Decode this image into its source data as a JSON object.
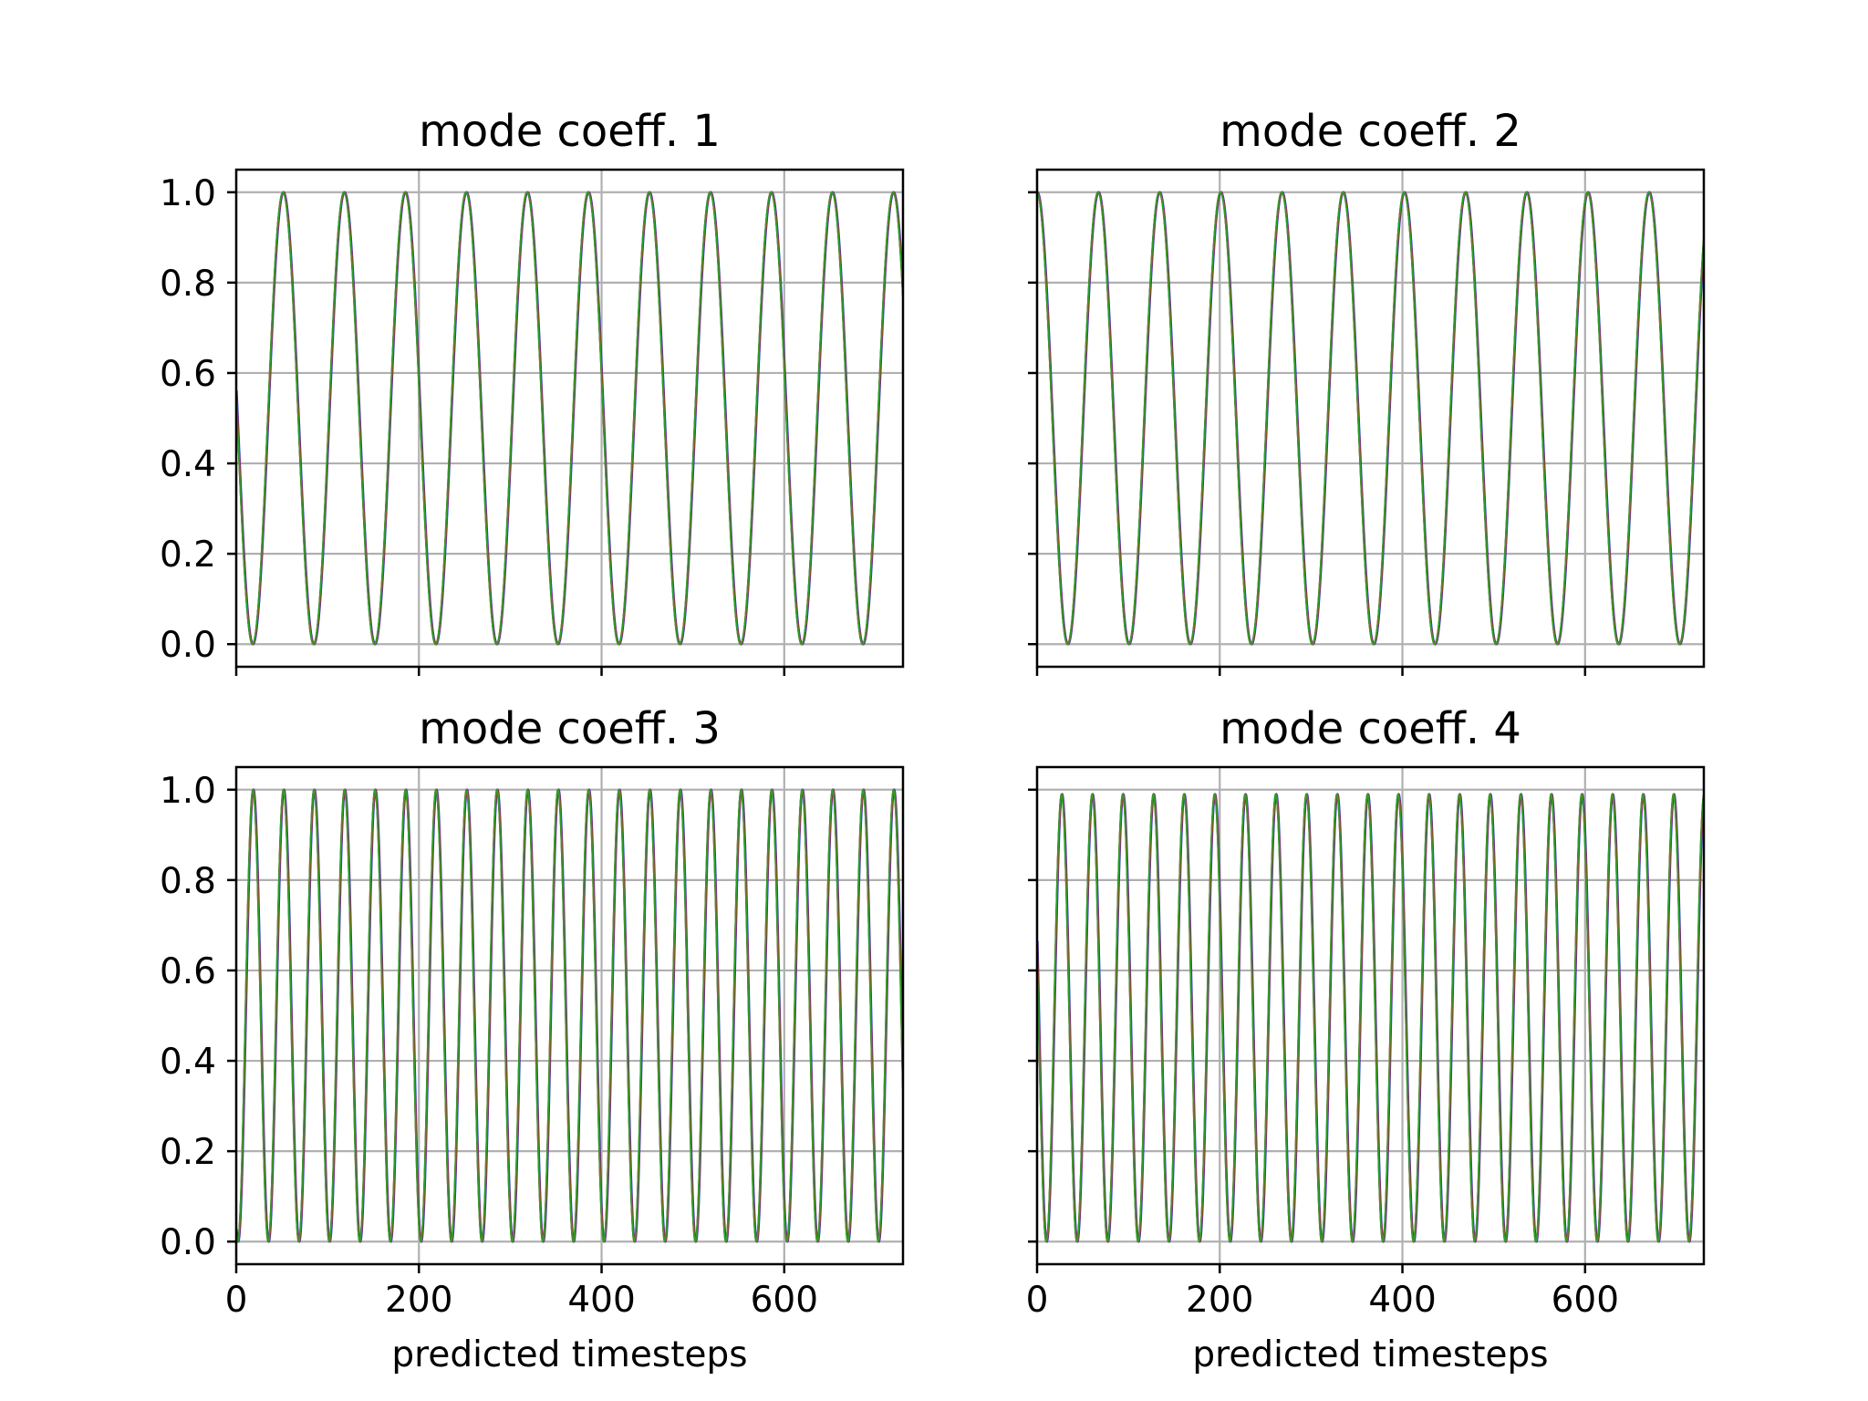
{
  "colors": {
    "background": "#ffffff",
    "grid": "#b0b0b0",
    "frame": "#000000",
    "series_1": "#1f3fe0",
    "series_2": "#ff0000",
    "series_3": "#2ca02c"
  },
  "chart_data": [
    {
      "type": "line",
      "title": "mode coeff. 1",
      "xlabel": "",
      "ylabel": "",
      "xlim": [
        0,
        730
      ],
      "ylim": [
        -0.05,
        1.05
      ],
      "xticks": [
        0,
        200,
        400,
        600
      ],
      "yticks": [
        0.0,
        0.2,
        0.4,
        0.6,
        0.8,
        1.0
      ],
      "x_tick_labels": [
        "",
        "",
        "",
        ""
      ],
      "y_tick_labels": [
        "0.0",
        "0.2",
        "0.4",
        "0.6",
        "0.8",
        "1.0"
      ],
      "grid": true,
      "signal": {
        "form": "0.5*(1+cos(2*pi*(x-x0)/period))",
        "period": 66.8,
        "x0": 51.4,
        "x_start": 0,
        "x_end": 730
      },
      "peaks_x": [
        51,
        118,
        185,
        251,
        318,
        385,
        452,
        519,
        586,
        653,
        720
      ],
      "troughs_x": [
        18,
        85,
        151,
        218,
        285,
        352,
        419,
        486,
        552,
        619,
        686
      ],
      "peak_value": 1.0,
      "trough_value": 0.0,
      "series": [
        {
          "color": "#1f3fe0"
        },
        {
          "color": "#ff0000"
        },
        {
          "color": "#2ca02c"
        }
      ]
    },
    {
      "type": "line",
      "title": "mode coeff. 2",
      "xlabel": "",
      "ylabel": "",
      "xlim": [
        0,
        730
      ],
      "ylim": [
        -0.05,
        1.05
      ],
      "xticks": [
        0,
        200,
        400,
        600
      ],
      "yticks": [
        0.0,
        0.2,
        0.4,
        0.6,
        0.8,
        1.0
      ],
      "x_tick_labels": [
        "",
        "",
        "",
        ""
      ],
      "y_tick_labels": [
        "",
        "",
        "",
        "",
        "",
        ""
      ],
      "grid": true,
      "signal": {
        "form": "0.5*(1+cos(2*pi*(x-x0)/period))",
        "period": 67.0,
        "x0": 0,
        "x_start": 0,
        "x_end": 730
      },
      "peaks_x": [
        0,
        67,
        134,
        201,
        268,
        335,
        402,
        469,
        536,
        603,
        670
      ],
      "troughs_x": [
        34,
        101,
        168,
        235,
        302,
        369,
        436,
        503,
        570,
        637,
        704
      ],
      "peak_value": 1.0,
      "trough_value": 0.0,
      "series": [
        {
          "color": "#1f3fe0"
        },
        {
          "color": "#ff0000"
        },
        {
          "color": "#2ca02c"
        }
      ]
    },
    {
      "type": "line",
      "title": "mode coeff. 3",
      "xlabel": "predicted timesteps",
      "ylabel": "",
      "xlim": [
        0,
        730
      ],
      "ylim": [
        -0.05,
        1.05
      ],
      "xticks": [
        0,
        200,
        400,
        600
      ],
      "yticks": [
        0.0,
        0.2,
        0.4,
        0.6,
        0.8,
        1.0
      ],
      "x_tick_labels": [
        "0",
        "200",
        "400",
        "600"
      ],
      "y_tick_labels": [
        "0.0",
        "0.2",
        "0.4",
        "0.6",
        "0.8",
        "1.0"
      ],
      "grid": true,
      "signal": {
        "form": "0.5*(1+cos(2*pi*(x-x0)/period))",
        "period": 33.4,
        "x0": 18.5,
        "x_start": 0,
        "x_end": 730
      },
      "peak_value": 1.0,
      "trough_value": 0.0,
      "series": [
        {
          "color": "#1f3fe0"
        },
        {
          "color": "#ff0000"
        },
        {
          "color": "#2ca02c"
        }
      ]
    },
    {
      "type": "line",
      "title": "mode coeff. 4",
      "xlabel": "predicted timesteps",
      "ylabel": "",
      "xlim": [
        0,
        730
      ],
      "ylim": [
        -0.05,
        1.05
      ],
      "xticks": [
        0,
        200,
        400,
        600
      ],
      "yticks": [
        0.0,
        0.2,
        0.4,
        0.6,
        0.8,
        1.0
      ],
      "x_tick_labels": [
        "0",
        "200",
        "400",
        "600"
      ],
      "y_tick_labels": [
        "",
        "",
        "",
        "",
        "",
        ""
      ],
      "grid": true,
      "signal": {
        "form": "0.5*(1+cos(2*pi*(x-x0)/period))",
        "period": 33.5,
        "x0": 27,
        "x_start": 0,
        "x_end": 730
      },
      "peak_value": 0.99,
      "trough_value": 0.0,
      "series": [
        {
          "color": "#1f3fe0"
        },
        {
          "color": "#ff0000"
        },
        {
          "color": "#2ca02c"
        }
      ]
    }
  ]
}
